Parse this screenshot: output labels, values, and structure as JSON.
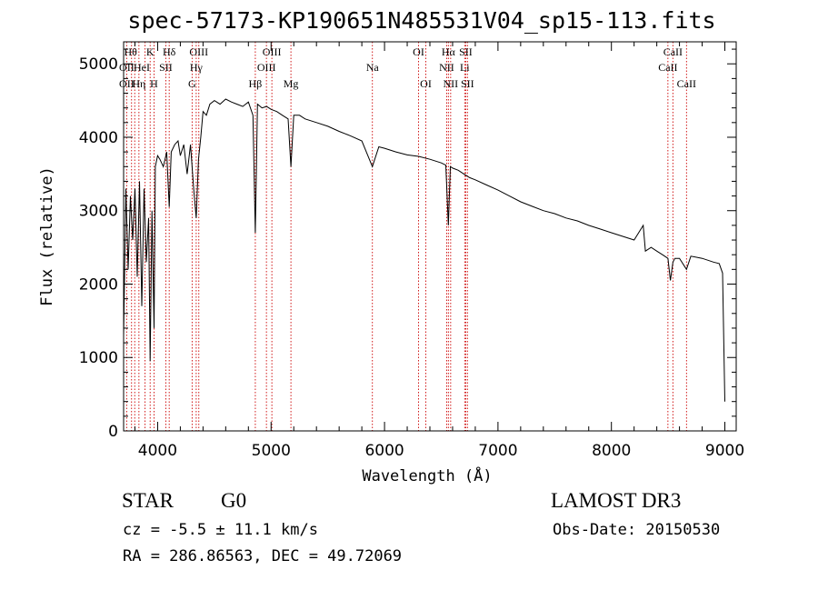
{
  "title": "spec-57173-KP190651N485531V04_sp15-113.fits",
  "chart_data": {
    "type": "line",
    "title": "spec-57173-KP190651N485531V04_sp15-113.fits",
    "xlabel": "Wavelength (Å)",
    "ylabel": "Flux (relative)",
    "xlim": [
      3700,
      9100
    ],
    "ylim": [
      0,
      5300
    ],
    "xticks": [
      4000,
      5000,
      6000,
      7000,
      8000,
      9000
    ],
    "yticks": [
      0,
      1000,
      2000,
      3000,
      4000,
      5000
    ],
    "line_color": "#000000",
    "marker_color": "#cc0000",
    "series": [
      {
        "name": "flux",
        "x": [
          3700,
          3720,
          3740,
          3760,
          3780,
          3800,
          3820,
          3840,
          3860,
          3880,
          3900,
          3920,
          3934,
          3950,
          3968,
          3980,
          4000,
          4020,
          4050,
          4080,
          4102,
          4120,
          4150,
          4180,
          4200,
          4230,
          4260,
          4290,
          4320,
          4340,
          4360,
          4380,
          4400,
          4430,
          4460,
          4500,
          4550,
          4600,
          4650,
          4700,
          4750,
          4800,
          4840,
          4861,
          4880,
          4920,
          4960,
          5000,
          5050,
          5100,
          5150,
          5175,
          5200,
          5250,
          5300,
          5400,
          5500,
          5600,
          5700,
          5800,
          5893,
          5950,
          6000,
          6100,
          6200,
          6300,
          6400,
          6500,
          6540,
          6563,
          6580,
          6600,
          6650,
          6700,
          6750,
          6800,
          6900,
          7000,
          7100,
          7200,
          7300,
          7400,
          7500,
          7600,
          7700,
          7800,
          7900,
          8000,
          8100,
          8200,
          8280,
          8300,
          8350,
          8400,
          8450,
          8498,
          8520,
          8542,
          8560,
          8600,
          8662,
          8700,
          8800,
          8900,
          8950,
          8980,
          9000
        ],
        "y": [
          1300,
          3300,
          2200,
          3200,
          2600,
          3300,
          2100,
          3400,
          1700,
          3300,
          2300,
          2900,
          950,
          3000,
          1400,
          3600,
          3750,
          3700,
          3600,
          3800,
          3050,
          3800,
          3900,
          3950,
          3750,
          3900,
          3500,
          3900,
          3250,
          2900,
          3700,
          4000,
          4350,
          4300,
          4450,
          4500,
          4450,
          4520,
          4480,
          4450,
          4420,
          4480,
          4300,
          2700,
          4450,
          4400,
          4420,
          4380,
          4350,
          4300,
          4250,
          3600,
          4300,
          4300,
          4250,
          4200,
          4150,
          4080,
          4020,
          3950,
          3600,
          3870,
          3850,
          3800,
          3760,
          3740,
          3700,
          3650,
          3620,
          2800,
          3600,
          3580,
          3550,
          3500,
          3450,
          3420,
          3350,
          3280,
          3200,
          3120,
          3060,
          3000,
          2960,
          2900,
          2860,
          2800,
          2750,
          2700,
          2650,
          2600,
          2800,
          2450,
          2500,
          2450,
          2400,
          2350,
          2050,
          2300,
          2350,
          2350,
          2200,
          2380,
          2350,
          2300,
          2280,
          2150,
          400
        ]
      }
    ],
    "line_markers": [
      {
        "x": 3727,
        "labels": [
          "OII"
        ]
      },
      {
        "x": 3770,
        "labels": [
          "Hθ"
        ]
      },
      {
        "x": 3798,
        "labels": [
          "HeI"
        ]
      },
      {
        "x": 3835,
        "labels": [
          "Hη"
        ]
      },
      {
        "x": 3889,
        "labels": [
          "HeI"
        ]
      },
      {
        "x": 3934,
        "labels": [
          "K"
        ]
      },
      {
        "x": 3968,
        "labels": [
          "H"
        ]
      },
      {
        "x": 4072,
        "labels": [
          "SII"
        ]
      },
      {
        "x": 4102,
        "labels": [
          "Hδ"
        ]
      },
      {
        "x": 4304,
        "labels": [
          "G"
        ]
      },
      {
        "x": 4340,
        "labels": [
          "Hγ"
        ]
      },
      {
        "x": 4363,
        "labels": [
          "OIII"
        ]
      },
      {
        "x": 4861,
        "labels": [
          "Hβ"
        ]
      },
      {
        "x": 4959,
        "labels": [
          "OIII"
        ]
      },
      {
        "x": 5007,
        "labels": [
          "OIII"
        ]
      },
      {
        "x": 5175,
        "labels": [
          "Mg"
        ]
      },
      {
        "x": 5893,
        "labels": [
          "Na"
        ]
      },
      {
        "x": 6300,
        "labels": [
          "OI"
        ]
      },
      {
        "x": 6364,
        "labels": [
          "OI"
        ]
      },
      {
        "x": 6548,
        "labels": [
          "NII"
        ]
      },
      {
        "x": 6563,
        "labels": [
          "Hα"
        ]
      },
      {
        "x": 6583,
        "labels": [
          "NII"
        ]
      },
      {
        "x": 6707,
        "labels": [
          "Li"
        ]
      },
      {
        "x": 6716,
        "labels": [
          "SII"
        ]
      },
      {
        "x": 6731,
        "labels": [
          "SII"
        ]
      },
      {
        "x": 8498,
        "labels": [
          "CaII"
        ]
      },
      {
        "x": 8542,
        "labels": [
          "CaII"
        ]
      },
      {
        "x": 8662,
        "labels": [
          "CaII"
        ]
      }
    ],
    "marker_labels": [
      {
        "text": "Hθ",
        "x": 3762,
        "row": 1
      },
      {
        "text": "K",
        "x": 3934,
        "row": 1
      },
      {
        "text": "Hδ",
        "x": 4102,
        "row": 1
      },
      {
        "text": "OIII",
        "x": 4363,
        "row": 1
      },
      {
        "text": "OIII",
        "x": 5007,
        "row": 1
      },
      {
        "text": "OI",
        "x": 6300,
        "row": 1
      },
      {
        "text": "Hα",
        "x": 6563,
        "row": 1
      },
      {
        "text": "SII",
        "x": 6716,
        "row": 1
      },
      {
        "text": "CaII",
        "x": 8542,
        "row": 1
      },
      {
        "text": "OII",
        "x": 3727,
        "row": 2
      },
      {
        "text": "HeI",
        "x": 3860,
        "row": 2
      },
      {
        "text": "SII",
        "x": 4072,
        "row": 2
      },
      {
        "text": "Hγ",
        "x": 4340,
        "row": 2
      },
      {
        "text": "OIII",
        "x": 4959,
        "row": 2
      },
      {
        "text": "Na",
        "x": 5893,
        "row": 2
      },
      {
        "text": "NII",
        "x": 6548,
        "row": 2
      },
      {
        "text": "Li",
        "x": 6707,
        "row": 2
      },
      {
        "text": "CaII",
        "x": 8498,
        "row": 2
      },
      {
        "text": "OII",
        "x": 3727,
        "row": 3
      },
      {
        "text": "Hη",
        "x": 3835,
        "row": 3
      },
      {
        "text": "H",
        "x": 3968,
        "row": 3
      },
      {
        "text": "G",
        "x": 4304,
        "row": 3
      },
      {
        "text": "Hβ",
        "x": 4861,
        "row": 3
      },
      {
        "text": "Mg",
        "x": 5175,
        "row": 3
      },
      {
        "text": "OI",
        "x": 6364,
        "row": 3
      },
      {
        "text": "NII",
        "x": 6583,
        "row": 3
      },
      {
        "text": "SII",
        "x": 6731,
        "row": 3
      },
      {
        "text": "CaII",
        "x": 8662,
        "row": 3
      }
    ]
  },
  "info": {
    "class": "STAR",
    "subclass": "G0",
    "cz": "cz = -5.5 ± 11.1 km/s",
    "radec": "RA = 286.86563, DEC =  49.72069",
    "survey": "LAMOST DR3",
    "obs_date": "Obs-Date: 20150530"
  }
}
